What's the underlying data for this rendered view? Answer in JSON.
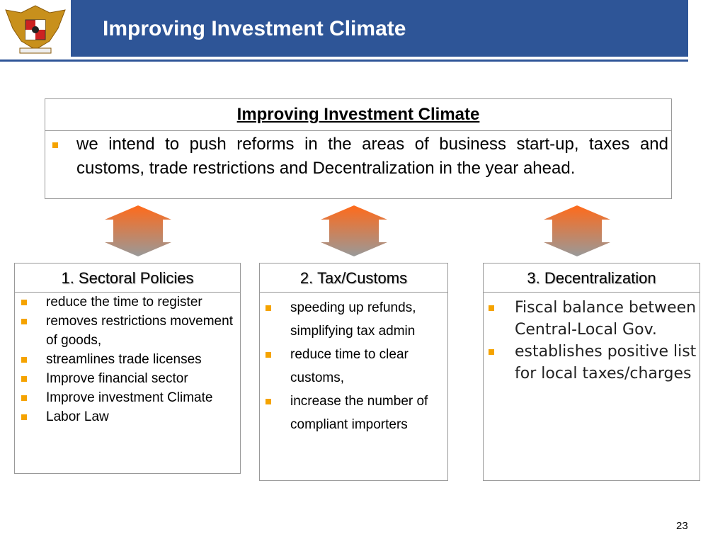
{
  "header": {
    "title": "Improving Investment Climate"
  },
  "main_box": {
    "title": "Improving Investment Climate",
    "text": "we intend to push reforms in the areas of business start-up, taxes and customs, trade restrictions and Decentralization in the year ahead."
  },
  "columns": [
    {
      "title": "1. Sectoral Policies",
      "items": [
        "reduce the time to register",
        "removes restrictions movement of goods,",
        "streamlines trade licenses",
        "Improve financial sector",
        "Improve investment Climate",
        "Labor Law"
      ]
    },
    {
      "title": "2. Tax/Customs",
      "items": [
        "speeding up refunds, simplifying tax admin",
        "reduce time to clear customs,",
        "increase the number of compliant importers"
      ]
    },
    {
      "title": "3. Decentralization",
      "items": [
        "Fiscal balance between Central-Local Gov.",
        "establishes positive list for local taxes/charges"
      ]
    }
  ],
  "page_number": "23"
}
